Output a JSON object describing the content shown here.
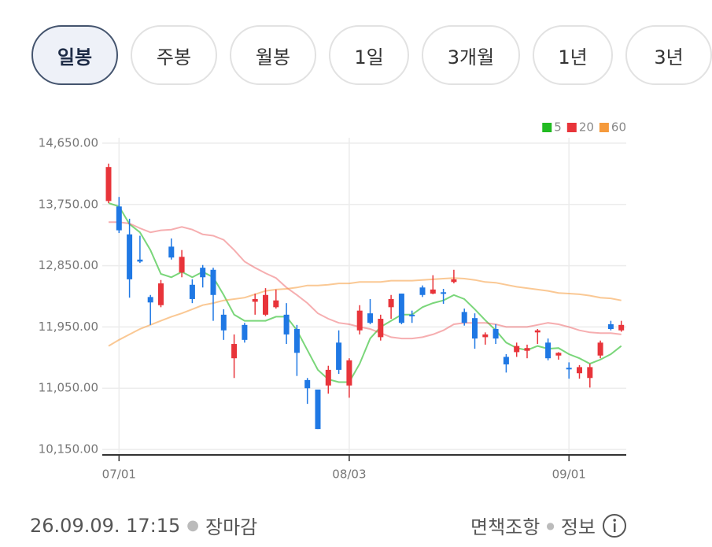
{
  "tabs": [
    {
      "label": "일봉",
      "selected": true
    },
    {
      "label": "주봉",
      "selected": false
    },
    {
      "label": "월봉",
      "selected": false
    },
    {
      "label": "1일",
      "selected": false
    },
    {
      "label": "3개월",
      "selected": false
    },
    {
      "label": "1년",
      "selected": false
    },
    {
      "label": "3년",
      "selected": false
    }
  ],
  "chart_data": {
    "type": "candlestick",
    "categories": [
      null,
      "07/01",
      null,
      null,
      null,
      null,
      null,
      null,
      null,
      null,
      null,
      null,
      null,
      null,
      null,
      null,
      null,
      null,
      null,
      null,
      null,
      null,
      null,
      "08/03",
      null,
      null,
      null,
      null,
      null,
      null,
      null,
      null,
      null,
      null,
      null,
      null,
      null,
      null,
      null,
      null,
      null,
      null,
      null,
      null,
      "09/01",
      null,
      null,
      null,
      null,
      null
    ],
    "open": [
      13800,
      13720,
      13310,
      12940,
      12390,
      12270,
      13130,
      12750,
      12570,
      12820,
      12790,
      12130,
      11490,
      11980,
      12320,
      12130,
      12240,
      12130,
      11920,
      11170,
      11030,
      11090,
      11720,
      11090,
      11900,
      12150,
      11800,
      12240,
      12440,
      12130,
      12530,
      12440,
      12460,
      12610,
      12170,
      12080,
      11800,
      11920,
      11510,
      11580,
      11600,
      11870,
      11720,
      11530,
      11350,
      11270,
      11200,
      11530,
      11990,
      11900
    ],
    "high": [
      14350,
      13860,
      13540,
      13290,
      12420,
      12640,
      13250,
      13080,
      12650,
      12860,
      12820,
      12210,
      11840,
      12010,
      12440,
      12520,
      12500,
      12300,
      11980,
      11200,
      11030,
      11380,
      11900,
      11490,
      12270,
      12360,
      12130,
      12420,
      12440,
      12190,
      12560,
      12710,
      12510,
      12790,
      12220,
      12150,
      11870,
      11990,
      11550,
      11720,
      11690,
      11920,
      11780,
      11580,
      11430,
      11390,
      11410,
      11750,
      12040,
      12040
    ],
    "low": [
      13770,
      13330,
      12380,
      12890,
      11980,
      12240,
      12940,
      12680,
      12300,
      12530,
      12040,
      11760,
      11200,
      11720,
      12130,
      12110,
      12220,
      11700,
      11230,
      10820,
      10450,
      10970,
      11260,
      10910,
      11840,
      11990,
      11750,
      12070,
      11990,
      12010,
      12390,
      12430,
      12290,
      12590,
      11970,
      11630,
      11690,
      11700,
      11280,
      11510,
      11490,
      11700,
      11460,
      11470,
      11190,
      11190,
      11060,
      11490,
      11900,
      11880
    ],
    "close": [
      14300,
      13370,
      12650,
      12910,
      12310,
      12590,
      12970,
      12980,
      12360,
      12680,
      12420,
      11900,
      11700,
      11760,
      12360,
      12420,
      12340,
      11840,
      11570,
      11050,
      10450,
      11320,
      11320,
      11460,
      12190,
      12010,
      12070,
      12360,
      12010,
      12110,
      12420,
      12500,
      12440,
      12650,
      12010,
      11780,
      11840,
      11780,
      11400,
      11670,
      11640,
      11900,
      11490,
      11570,
      11330,
      11360,
      11360,
      11720,
      11920,
      11980
    ],
    "up_color": "#e8343a",
    "down_color": "#1f78e4",
    "series": [
      {
        "name": "5",
        "color": "#22bb22",
        "values": [
          13770,
          13720,
          13460,
          13340,
          13080,
          12730,
          12680,
          12760,
          12680,
          12760,
          12680,
          12420,
          12130,
          12040,
          12040,
          12040,
          12100,
          12100,
          11900,
          11610,
          11320,
          11180,
          11140,
          11140,
          11410,
          11780,
          11950,
          12040,
          12130,
          12130,
          12240,
          12300,
          12340,
          12420,
          12360,
          12210,
          12050,
          11900,
          11720,
          11640,
          11610,
          11670,
          11630,
          11640,
          11550,
          11490,
          11410,
          11470,
          11550,
          11670
        ]
      },
      {
        "name": "20",
        "color": "#e8343a",
        "values": [
          13490,
          13490,
          13470,
          13400,
          13340,
          13370,
          13380,
          13420,
          13380,
          13310,
          13290,
          13230,
          13080,
          12910,
          12820,
          12740,
          12670,
          12530,
          12420,
          12300,
          12150,
          12070,
          12010,
          11990,
          11950,
          11920,
          11860,
          11800,
          11780,
          11780,
          11800,
          11840,
          11900,
          11990,
          12010,
          12010,
          12010,
          11990,
          11950,
          11950,
          11950,
          11980,
          12010,
          11990,
          11950,
          11900,
          11870,
          11860,
          11860,
          11840
        ]
      },
      {
        "name": "60",
        "color": "#f59a3c",
        "values": [
          11670,
          11760,
          11840,
          11920,
          11980,
          12040,
          12100,
          12150,
          12210,
          12270,
          12300,
          12340,
          12360,
          12380,
          12430,
          12480,
          12500,
          12510,
          12530,
          12560,
          12560,
          12570,
          12590,
          12590,
          12610,
          12610,
          12610,
          12630,
          12630,
          12630,
          12640,
          12650,
          12660,
          12670,
          12660,
          12640,
          12610,
          12600,
          12570,
          12540,
          12520,
          12500,
          12480,
          12450,
          12440,
          12430,
          12410,
          12380,
          12370,
          12340
        ]
      }
    ],
    "ylim": [
      10070,
      14730
    ],
    "yticks": [
      {
        "value": 14650,
        "label": "14,650.00"
      },
      {
        "value": 13750,
        "label": "13,750.00"
      },
      {
        "value": 12850,
        "label": "12,850.00"
      },
      {
        "value": 11950,
        "label": "11,950.00"
      },
      {
        "value": 11050,
        "label": "11,050.00"
      },
      {
        "value": 10150,
        "label": "10,150.00"
      }
    ],
    "grid": true,
    "legend": "top-right"
  },
  "footer": {
    "timestamp": "26.09.09. 17:15",
    "status": "장마감",
    "links": [
      "면책조항",
      "정보"
    ]
  }
}
